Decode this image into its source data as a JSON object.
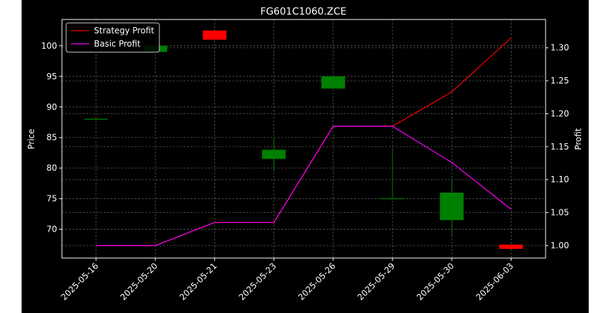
{
  "chart_data": {
    "type": "candlestick",
    "title": "FG601C1060.ZCE",
    "xlabel": "",
    "ylabel": "Price",
    "y2label": "Profit",
    "categories": [
      "2025-05-16",
      "2025-05-20",
      "2025-05-21",
      "2025-05-23",
      "2025-05-26",
      "2025-05-29",
      "2025-05-30",
      "2025-06-03"
    ],
    "ylim": [
      65.3,
      104.3
    ],
    "y2lim": [
      0.981,
      1.343
    ],
    "yticks": [
      70,
      75,
      80,
      85,
      90,
      95,
      100
    ],
    "y2ticks": [
      1.0,
      1.05,
      1.1,
      1.15,
      1.2,
      1.25,
      1.3
    ],
    "y2ticklabels": [
      "1.00",
      "1.05",
      "1.10",
      "1.15",
      "1.20",
      "1.25",
      "1.30"
    ],
    "grid": true,
    "legend_position": "top-left",
    "candles": [
      {
        "date": "2025-05-16",
        "open": 88.0,
        "high": 88.0,
        "low": 88.0,
        "close": 88.0
      },
      {
        "date": "2025-05-20",
        "open": 99.0,
        "high": 100.0,
        "low": 99.0,
        "close": 100.0
      },
      {
        "date": "2025-05-21",
        "open": 102.5,
        "high": 102.5,
        "low": 101.0,
        "close": 101.0
      },
      {
        "date": "2025-05-23",
        "open": 81.5,
        "high": 85.0,
        "low": 79.5,
        "close": 83.0
      },
      {
        "date": "2025-05-26",
        "open": 93.0,
        "high": 95.0,
        "low": 93.0,
        "close": 95.0
      },
      {
        "date": "2025-05-29",
        "open": 75.0,
        "high": 83.0,
        "low": 75.0,
        "close": 75.0
      },
      {
        "date": "2025-05-30",
        "open": 71.5,
        "high": 78.0,
        "low": 69.0,
        "close": 76.0
      },
      {
        "date": "2025-06-03",
        "open": 67.5,
        "high": 67.5,
        "low": 66.8,
        "close": 66.8
      }
    ],
    "series": [
      {
        "name": "Strategy Profit",
        "color": "#ff0000",
        "values": [
          1.0,
          1.0,
          1.035,
          1.035,
          1.181,
          1.181,
          1.233,
          1.315
        ]
      },
      {
        "name": "Basic Profit",
        "color": "#ff00ff",
        "values": [
          1.0,
          1.0,
          1.035,
          1.035,
          1.181,
          1.181,
          1.126,
          1.055
        ]
      }
    ],
    "colors": {
      "up": "#008000",
      "down": "#ff0000",
      "background": "#000000",
      "text": "#ffffff",
      "grid": "#8c8c8c"
    }
  }
}
